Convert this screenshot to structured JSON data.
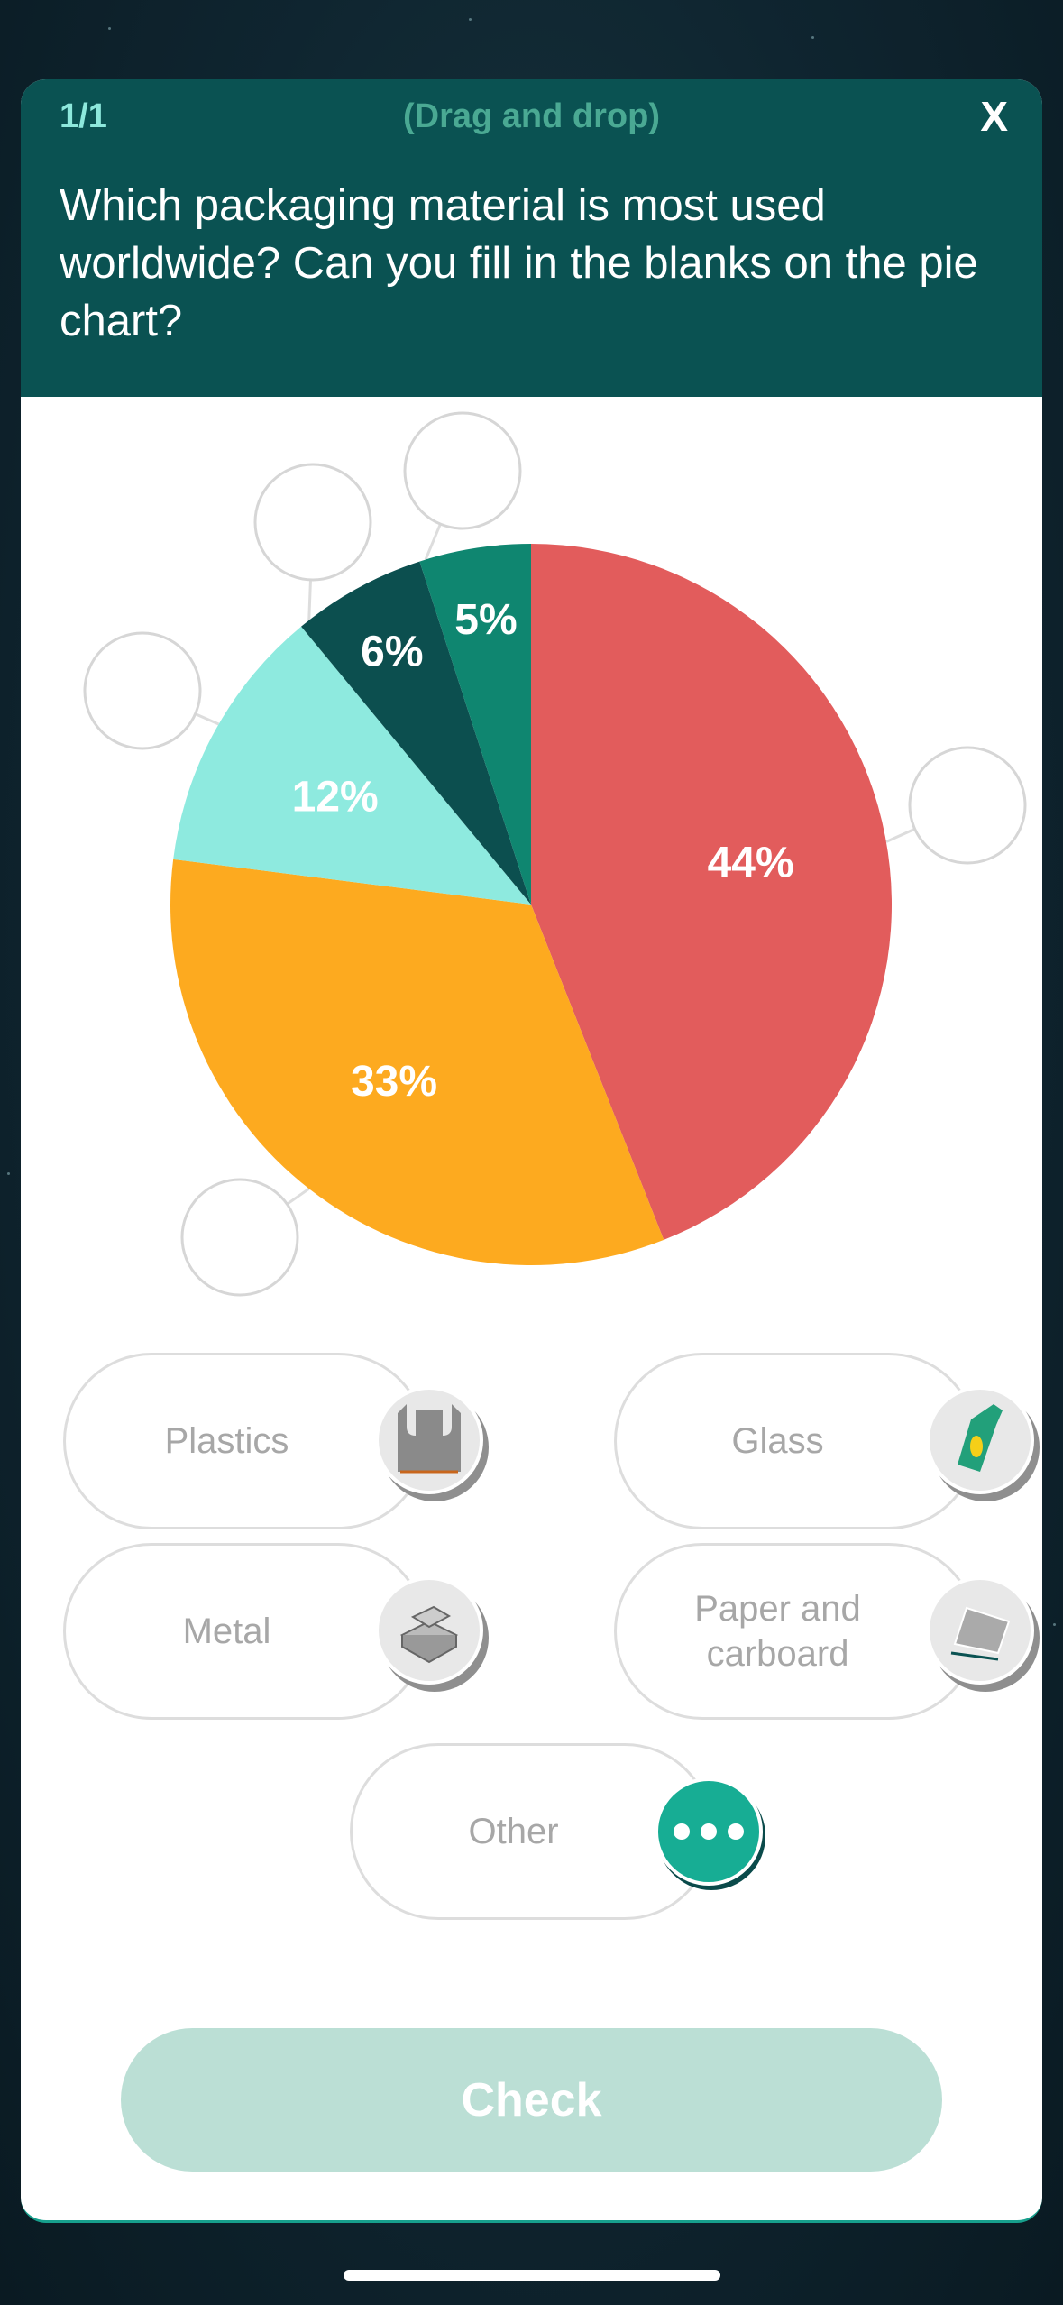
{
  "header": {
    "counter": "1/1",
    "mode": "(Drag and drop)",
    "close_label": "X",
    "question": "Which packaging material is most used worldwide? Can you fill in the blanks on the pie chart?"
  },
  "chart_data": {
    "type": "pie",
    "values": [
      44,
      33,
      12,
      6,
      5
    ],
    "labels": [
      "44%",
      "33%",
      "12%",
      "6%",
      "5%"
    ],
    "colors": [
      "#e25c5c",
      "#fdaa1f",
      "#8eeadf",
      "#0c4f4f",
      "#0f8670"
    ],
    "drop_slots": 5
  },
  "options": [
    {
      "label": "Plastics",
      "icon": "plastic-bag-icon"
    },
    {
      "label": "Glass",
      "icon": "glass-bottle-icon"
    },
    {
      "label": "Metal",
      "icon": "metal-ingots-icon"
    },
    {
      "label": "Paper and carboard",
      "icon": "paper-stack-icon"
    },
    {
      "label": "Other",
      "icon": "more-dots-icon"
    }
  ],
  "check_label": "Check"
}
